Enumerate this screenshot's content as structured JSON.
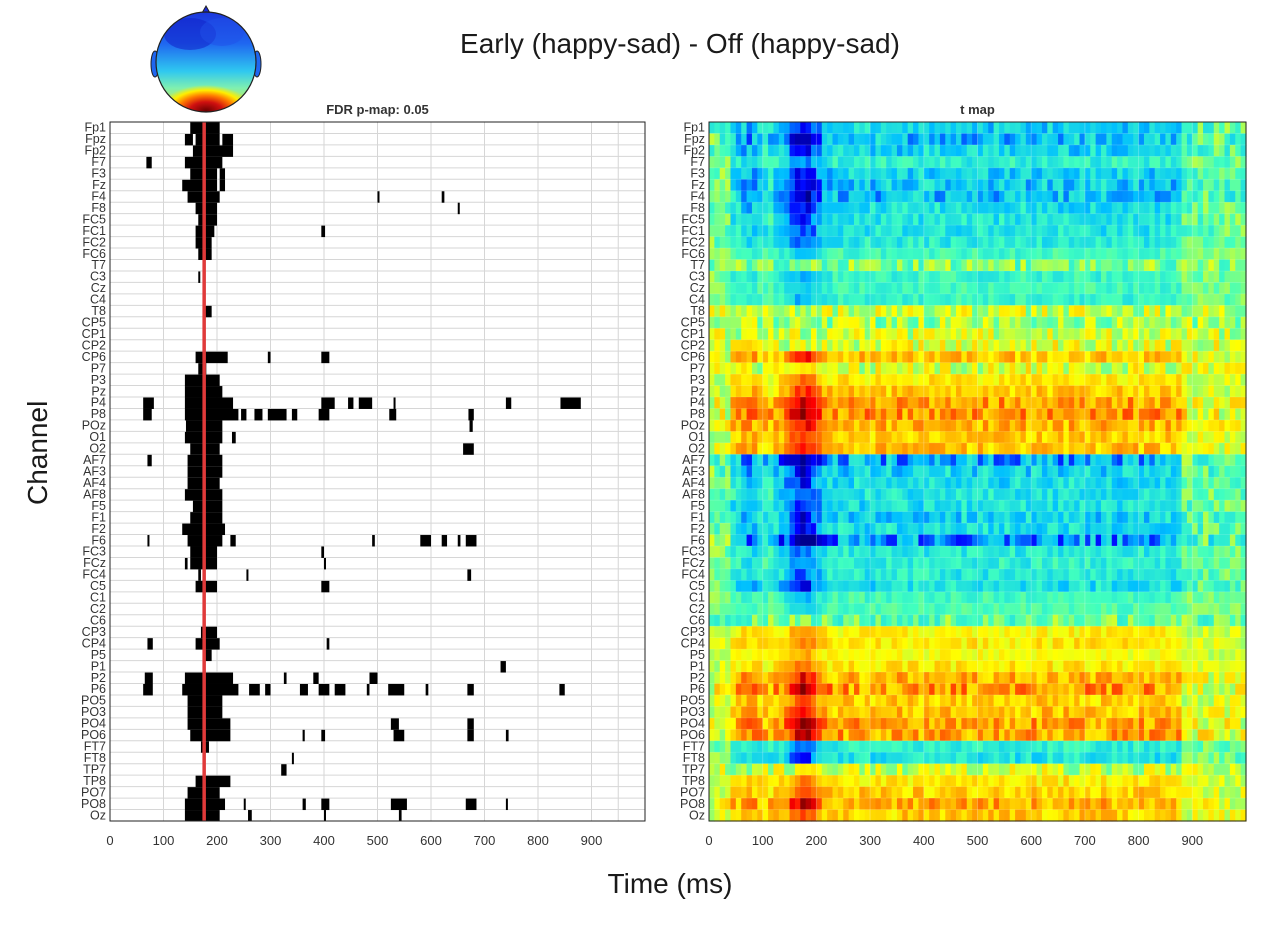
{
  "title": "Early (happy-sad) - Off (happy-sad)",
  "ylabel": "Channel",
  "xlabel": "Time (ms)",
  "headmap": {
    "label": "scalp topography",
    "colors": {
      "low": "#1f3fe0",
      "mid": "#3bd8f0",
      "high": "#d01010"
    }
  },
  "marker_ms": 176,
  "channels": [
    "Fp1",
    "Fpz",
    "Fp2",
    "F7",
    "F3",
    "Fz",
    "F4",
    "F8",
    "FC5",
    "FC1",
    "FC2",
    "FC6",
    "T7",
    "C3",
    "Cz",
    "C4",
    "T8",
    "CP5",
    "CP1",
    "CP2",
    "CP6",
    "P7",
    "P3",
    "Pz",
    "P4",
    "P8",
    "POz",
    "O1",
    "O2",
    "AF7",
    "AF3",
    "AF4",
    "AF8",
    "F5",
    "F1",
    "F2",
    "F6",
    "FC3",
    "FCz",
    "FC4",
    "C5",
    "C1",
    "C2",
    "C6",
    "CP3",
    "CP4",
    "P5",
    "P1",
    "P2",
    "P6",
    "PO5",
    "PO3",
    "PO4",
    "PO6",
    "FT7",
    "FT8",
    "TP7",
    "TP8",
    "PO7",
    "PO8",
    "Oz"
  ],
  "chart_data": [
    {
      "type": "heatmap",
      "title": "FDR p-map: 0.05",
      "xlabel": "Time (ms)",
      "ylabel": "Channel",
      "xlim": [
        0,
        1000
      ],
      "xticks": [
        0,
        100,
        200,
        300,
        400,
        500,
        600,
        700,
        800,
        900
      ],
      "grid": true,
      "colors": {
        "significant": "#000000",
        "background": "#ffffff",
        "marker": "#e03a3a"
      },
      "significant": {
        "Fp1": [
          [
            150,
            205
          ]
        ],
        "Fpz": [
          [
            140,
            155
          ],
          [
            160,
            205
          ],
          [
            210,
            230
          ]
        ],
        "Fp2": [
          [
            155,
            230
          ]
        ],
        "F7": [
          [
            68,
            78
          ],
          [
            140,
            210
          ]
        ],
        "F3": [
          [
            150,
            200
          ],
          [
            205,
            215
          ]
        ],
        "Fz": [
          [
            135,
            200
          ],
          [
            205,
            215
          ]
        ],
        "F4": [
          [
            145,
            205
          ],
          [
            500,
            503
          ],
          [
            620,
            625
          ]
        ],
        "F8": [
          [
            160,
            200
          ],
          [
            650,
            653
          ]
        ],
        "FC5": [
          [
            165,
            200
          ]
        ],
        "FC1": [
          [
            160,
            195
          ],
          [
            395,
            402
          ]
        ],
        "FC2": [
          [
            160,
            190
          ]
        ],
        "FC6": [
          [
            165,
            190
          ]
        ],
        "T7": [],
        "C3": [
          [
            165,
            168
          ]
        ],
        "Cz": [],
        "C4": [],
        "T8": [
          [
            178,
            190
          ]
        ],
        "CP5": [],
        "CP1": [],
        "CP2": [],
        "CP6": [
          [
            160,
            220
          ],
          [
            295,
            300
          ],
          [
            395,
            410
          ]
        ],
        "P7": [
          [
            165,
            180
          ]
        ],
        "P3": [
          [
            140,
            205
          ]
        ],
        "Pz": [
          [
            140,
            210
          ]
        ],
        "P4": [
          [
            62,
            82
          ],
          [
            140,
            230
          ],
          [
            395,
            420
          ],
          [
            445,
            455
          ],
          [
            465,
            490
          ],
          [
            530,
            533
          ],
          [
            740,
            750
          ],
          [
            842,
            880
          ]
        ],
        "P8": [
          [
            62,
            78
          ],
          [
            140,
            240
          ],
          [
            245,
            255
          ],
          [
            270,
            285
          ],
          [
            295,
            330
          ],
          [
            340,
            350
          ],
          [
            390,
            410
          ],
          [
            522,
            535
          ],
          [
            670,
            680
          ]
        ],
        "POz": [
          [
            142,
            210
          ],
          [
            672,
            678
          ]
        ],
        "O1": [
          [
            140,
            210
          ],
          [
            228,
            235
          ]
        ],
        "O2": [
          [
            150,
            205
          ],
          [
            660,
            680
          ]
        ],
        "AF7": [
          [
            70,
            78
          ],
          [
            145,
            210
          ]
        ],
        "AF3": [
          [
            145,
            210
          ]
        ],
        "AF4": [
          [
            145,
            205
          ]
        ],
        "AF8": [
          [
            140,
            210
          ]
        ],
        "F5": [
          [
            155,
            210
          ]
        ],
        "F1": [
          [
            150,
            210
          ]
        ],
        "F2": [
          [
            135,
            215
          ]
        ],
        "F6": [
          [
            70,
            72
          ],
          [
            145,
            210
          ],
          [
            225,
            235
          ],
          [
            490,
            495
          ],
          [
            580,
            600
          ],
          [
            620,
            630
          ],
          [
            650,
            655
          ],
          [
            665,
            685
          ]
        ],
        "FC3": [
          [
            150,
            200
          ],
          [
            395,
            400
          ]
        ],
        "FCz": [
          [
            140,
            145
          ],
          [
            150,
            200
          ],
          [
            400,
            403
          ]
        ],
        "FC4": [
          [
            165,
            170
          ],
          [
            255,
            258
          ],
          [
            668,
            675
          ]
        ],
        "C5": [
          [
            160,
            200
          ],
          [
            395,
            410
          ]
        ],
        "C1": [],
        "C2": [],
        "C6": [],
        "CP3": [
          [
            170,
            200
          ]
        ],
        "CP4": [
          [
            70,
            80
          ],
          [
            160,
            205
          ],
          [
            405,
            410
          ]
        ],
        "P5": [
          [
            175,
            190
          ]
        ],
        "P1": [
          [
            730,
            740
          ]
        ],
        "P2": [
          [
            65,
            80
          ],
          [
            140,
            230
          ],
          [
            325,
            330
          ],
          [
            380,
            390
          ],
          [
            485,
            500
          ]
        ],
        "P6": [
          [
            62,
            80
          ],
          [
            135,
            240
          ],
          [
            260,
            280
          ],
          [
            290,
            300
          ],
          [
            355,
            370
          ],
          [
            390,
            410
          ],
          [
            420,
            440
          ],
          [
            480,
            485
          ],
          [
            520,
            550
          ],
          [
            590,
            595
          ],
          [
            668,
            680
          ],
          [
            840,
            850
          ]
        ],
        "PO5": [
          [
            145,
            210
          ]
        ],
        "PO3": [
          [
            145,
            210
          ]
        ],
        "PO4": [
          [
            145,
            225
          ],
          [
            525,
            540
          ],
          [
            668,
            680
          ]
        ],
        "PO6": [
          [
            150,
            225
          ],
          [
            360,
            364
          ],
          [
            395,
            402
          ],
          [
            530,
            550
          ],
          [
            668,
            680
          ],
          [
            740,
            745
          ]
        ],
        "FT7": [
          [
            170,
            185
          ]
        ],
        "FT8": [
          [
            340,
            343
          ]
        ],
        "TP7": [
          [
            320,
            330
          ]
        ],
        "TP8": [
          [
            160,
            225
          ]
        ],
        "PO7": [
          [
            145,
            205
          ]
        ],
        "PO8": [
          [
            140,
            215
          ],
          [
            250,
            253
          ],
          [
            360,
            366
          ],
          [
            395,
            410
          ],
          [
            525,
            555
          ],
          [
            665,
            685
          ],
          [
            740,
            743
          ]
        ],
        "Oz": [
          [
            140,
            205
          ],
          [
            258,
            265
          ],
          [
            400,
            403
          ],
          [
            540,
            545
          ]
        ]
      }
    },
    {
      "type": "heatmap",
      "title": "t map",
      "xlabel": "Time (ms)",
      "ylabel": "Channel",
      "xlim": [
        0,
        1000
      ],
      "xticks": [
        0,
        100,
        200,
        300,
        400,
        500,
        600,
        700,
        800,
        900
      ],
      "colormap": "jet",
      "colormap_stops": [
        "#00008f",
        "#0000ff",
        "#00bfff",
        "#40ffbf",
        "#ffff00",
        "#ff8000",
        "#ff0000",
        "#800000"
      ],
      "channel_sign": {
        "Fp1": -0.6,
        "Fpz": -0.7,
        "Fp2": -0.6,
        "F7": -0.4,
        "F3": -0.6,
        "Fz": -0.65,
        "F4": -0.7,
        "F8": -0.55,
        "FC5": -0.5,
        "FC1": -0.5,
        "FC2": -0.45,
        "FC6": -0.3,
        "T7": -0.1,
        "C3": -0.35,
        "Cz": -0.3,
        "C4": -0.35,
        "T8": 0.1,
        "CP5": 0.0,
        "CP1": 0.1,
        "CP2": 0.15,
        "CP6": 0.5,
        "P7": 0.15,
        "P3": 0.35,
        "Pz": 0.45,
        "P4": 0.65,
        "P8": 0.7,
        "POz": 0.55,
        "O1": 0.45,
        "O2": 0.5,
        "AF7": -0.8,
        "AF3": -0.6,
        "AF4": -0.55,
        "AF8": -0.5,
        "F5": -0.55,
        "F1": -0.6,
        "F2": -0.55,
        "F6": -0.85,
        "FC3": -0.45,
        "FCz": -0.4,
        "FC4": -0.45,
        "C5": -0.55,
        "C1": -0.3,
        "C2": -0.25,
        "C6": -0.15,
        "CP3": 0.3,
        "CP4": 0.35,
        "P5": 0.25,
        "P1": 0.35,
        "P2": 0.55,
        "P6": 0.7,
        "PO5": 0.45,
        "PO3": 0.5,
        "PO4": 0.65,
        "PO6": 0.65,
        "FT7": -0.4,
        "FT8": -0.5,
        "TP7": 0.1,
        "TP8": 0.35,
        "PO7": 0.45,
        "PO8": 0.6,
        "Oz": 0.45
      },
      "peak_ms": 176
    }
  ]
}
